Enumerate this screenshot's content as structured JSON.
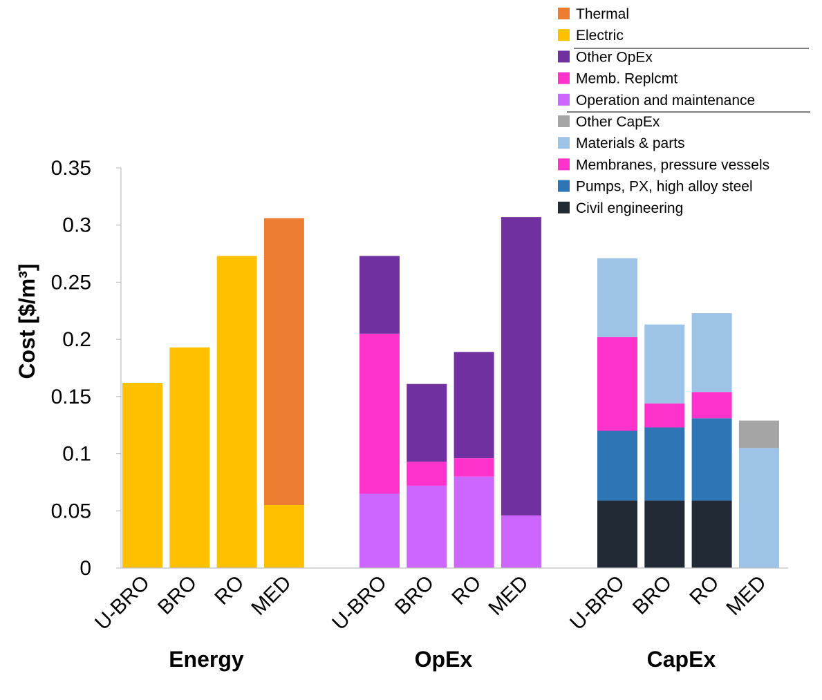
{
  "chart_data": {
    "type": "bar",
    "stacked": true,
    "ylabel": "Cost [$/m³]",
    "ylim": [
      0,
      0.35
    ],
    "yticks": [
      "0",
      "0.05",
      "0.1",
      "0.15",
      "0.2",
      "0.25",
      "0.3",
      "0.35"
    ],
    "grid": false,
    "legend_position": "top-right",
    "groups": [
      {
        "name": "Energy",
        "categories": [
          "U-BRO",
          "BRO",
          "RO",
          "MED"
        ],
        "series": [
          {
            "name": "Electric",
            "color": "#FFC000",
            "values": [
              0.162,
              0.193,
              0.273,
              0.055
            ]
          },
          {
            "name": "Thermal",
            "color": "#ED7D31",
            "values": [
              0,
              0,
              0,
              0.251
            ]
          }
        ]
      },
      {
        "name": "OpEx",
        "categories": [
          "U-BRO",
          "BRO",
          "RO",
          "MED"
        ],
        "series": [
          {
            "name": "Operation and maintenance",
            "color": "#CC66FF",
            "values": [
              0.065,
              0.072,
              0.08,
              0.046
            ]
          },
          {
            "name": "Memb. Replcmt",
            "color": "#FF33CC",
            "values": [
              0.14,
              0.021,
              0.016,
              0
            ]
          },
          {
            "name": "Other OpEx",
            "color": "#7030A0",
            "values": [
              0.068,
              0.068,
              0.093,
              0.261
            ]
          }
        ]
      },
      {
        "name": "CapEx",
        "categories": [
          "U-BRO",
          "BRO",
          "RO",
          "MED"
        ],
        "series": [
          {
            "name": "Civil engineering",
            "color": "#222A35",
            "values": [
              0.059,
              0.059,
              0.059,
              0
            ]
          },
          {
            "name": "Pumps, PX, high alloy steel",
            "color": "#2E75B6",
            "values": [
              0.061,
              0.064,
              0.072,
              0
            ]
          },
          {
            "name": "Membranes, pressure vessels",
            "color": "#FF33CC",
            "values": [
              0.082,
              0.021,
              0.023,
              0
            ]
          },
          {
            "name": "Materials & parts",
            "color": "#9DC3E6",
            "values": [
              0.069,
              0.069,
              0.069,
              0.105
            ]
          },
          {
            "name": "Other CapEx",
            "color": "#A5A5A5",
            "values": [
              0,
              0,
              0,
              0.024
            ]
          }
        ]
      }
    ],
    "legend": [
      {
        "name": "Thermal",
        "color": "#ED7D31"
      },
      {
        "name": "Electric",
        "color": "#FFC000"
      },
      {
        "name": "Other OpEx",
        "color": "#7030A0"
      },
      {
        "name": "Memb. Replcmt",
        "color": "#FF33CC"
      },
      {
        "name": "Operation and maintenance",
        "color": "#CC66FF"
      },
      {
        "name": "Other CapEx",
        "color": "#A5A5A5"
      },
      {
        "name": "Materials & parts",
        "color": "#9DC3E6"
      },
      {
        "name": "Membranes, pressure vessels",
        "color": "#FF33CC"
      },
      {
        "name": "Pumps, PX, high alloy steel",
        "color": "#2E75B6"
      },
      {
        "name": "Civil engineering",
        "color": "#222A35"
      }
    ]
  }
}
